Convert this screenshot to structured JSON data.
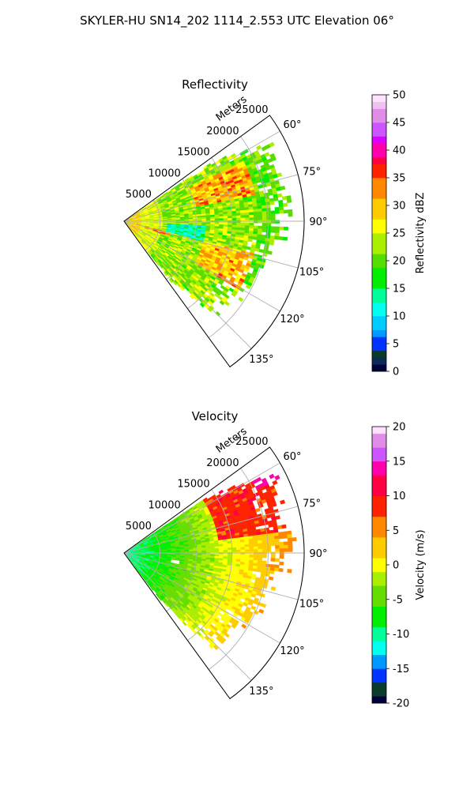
{
  "figure_title": "SKYLER-HU  SN14_202  1114_2.553 UTC Elevation 06°",
  "chart_data": [
    {
      "type": "heatmap",
      "projection": "polar-sector",
      "title": "Reflectivity",
      "radial_label": "Meters",
      "r_ticks": [
        5000,
        10000,
        15000,
        20000,
        25000
      ],
      "r_tick_labels": [
        "5000",
        "10000",
        "15000",
        "20000",
        "25000"
      ],
      "rlim": [
        0,
        25000
      ],
      "theta_ticks": [
        60,
        75,
        90,
        105,
        120,
        135
      ],
      "theta_tick_labels": [
        "60°",
        "75°",
        "90°",
        "105°",
        "120°",
        "135°"
      ],
      "theta_range": [
        54,
        144
      ],
      "grid": true,
      "colorbar": {
        "label": "Reflectivity dBZ",
        "min": 0,
        "max": 50,
        "ticks": [
          0,
          5,
          10,
          15,
          20,
          25,
          30,
          35,
          40,
          45,
          50
        ],
        "tick_labels": [
          "0",
          "5",
          "10",
          "15",
          "20",
          "25",
          "30",
          "35",
          "40",
          "45",
          "50"
        ],
        "colormap": [
          {
            "v": 0,
            "c": "#00003a"
          },
          {
            "v": 2,
            "c": "#0a2a5a"
          },
          {
            "v": 3,
            "c": "#0a3a2a"
          },
          {
            "v": 5,
            "c": "#0033ff"
          },
          {
            "v": 7,
            "c": "#0099ff"
          },
          {
            "v": 9,
            "c": "#00ccff"
          },
          {
            "v": 11,
            "c": "#00ffee"
          },
          {
            "v": 14,
            "c": "#00ff99"
          },
          {
            "v": 17,
            "c": "#00ee00"
          },
          {
            "v": 20,
            "c": "#55dd00"
          },
          {
            "v": 23,
            "c": "#aaee00"
          },
          {
            "v": 26,
            "c": "#ffff00"
          },
          {
            "v": 30,
            "c": "#ffcc00"
          },
          {
            "v": 33,
            "c": "#ff8800"
          },
          {
            "v": 36,
            "c": "#ff2200"
          },
          {
            "v": 38,
            "c": "#ff0044"
          },
          {
            "v": 40,
            "c": "#ff00aa"
          },
          {
            "v": 42,
            "c": "#dd00ff"
          },
          {
            "v": 44,
            "c": "#cc55ff"
          },
          {
            "v": 46,
            "c": "#e08ce8"
          },
          {
            "v": 48,
            "c": "#f0c0f0"
          },
          {
            "v": 50,
            "c": "#ffe0ff"
          }
        ]
      },
      "field_features": [
        {
          "note": "near-radar fill",
          "theta": [
            60,
            138
          ],
          "r": [
            0,
            5000
          ],
          "value": 24
        },
        {
          "note": "broad echo",
          "theta": [
            58,
            140
          ],
          "r": [
            5000,
            24000
          ],
          "value": 23
        },
        {
          "note": "weak core",
          "theta": [
            93,
            103
          ],
          "r": [
            6000,
            11000
          ],
          "value": 15
        },
        {
          "note": "northern band",
          "theta": [
            63,
            78
          ],
          "r": [
            10000,
            18500
          ],
          "value": 34
        },
        {
          "note": "southern band",
          "theta": [
            104,
            120
          ],
          "r": [
            11000,
            20000
          ],
          "value": 33
        },
        {
          "note": "near cell",
          "theta": [
            103,
            108
          ],
          "r": [
            3000,
            6000
          ],
          "value": 35
        }
      ]
    },
    {
      "type": "heatmap",
      "projection": "polar-sector",
      "title": "Velocity",
      "radial_label": "Meters",
      "r_ticks": [
        5000,
        10000,
        15000,
        20000,
        25000
      ],
      "r_tick_labels": [
        "5000",
        "10000",
        "15000",
        "20000",
        "25000"
      ],
      "rlim": [
        0,
        25000
      ],
      "theta_ticks": [
        60,
        75,
        90,
        105,
        120,
        135
      ],
      "theta_tick_labels": [
        "60°",
        "75°",
        "90°",
        "105°",
        "120°",
        "135°"
      ],
      "theta_range": [
        54,
        144
      ],
      "grid": true,
      "colorbar": {
        "label": "Velocity (m/s)",
        "min": -20,
        "max": 20,
        "ticks": [
          -20,
          -15,
          -10,
          -5,
          0,
          5,
          10,
          15,
          20
        ],
        "tick_labels": [
          "-20",
          "-15",
          "-10",
          "-5",
          "0",
          "5",
          "10",
          "15",
          "20"
        ],
        "colormap": [
          {
            "v": -20,
            "c": "#00003a"
          },
          {
            "v": -18,
            "c": "#0a3a2a"
          },
          {
            "v": -16,
            "c": "#0033ff"
          },
          {
            "v": -14,
            "c": "#0099ff"
          },
          {
            "v": -12,
            "c": "#00ffee"
          },
          {
            "v": -10,
            "c": "#00ff99"
          },
          {
            "v": -7,
            "c": "#00ee00"
          },
          {
            "v": -4,
            "c": "#66dd00"
          },
          {
            "v": -2,
            "c": "#aaee00"
          },
          {
            "v": 0,
            "c": "#ffff00"
          },
          {
            "v": 3,
            "c": "#ffcc00"
          },
          {
            "v": 6,
            "c": "#ff8800"
          },
          {
            "v": 9,
            "c": "#ff2200"
          },
          {
            "v": 12,
            "c": "#ff0044"
          },
          {
            "v": 14,
            "c": "#ff00aa"
          },
          {
            "v": 16,
            "c": "#cc55ff"
          },
          {
            "v": 18,
            "c": "#e08ce8"
          },
          {
            "v": 20,
            "c": "#ffe0ff"
          }
        ]
      },
      "field_features": [
        {
          "note": "inbound near radar",
          "theta": [
            56,
            142
          ],
          "r": [
            0,
            6000
          ],
          "value": -9
        },
        {
          "note": "transition ring",
          "theta": [
            56,
            142
          ],
          "r": [
            6000,
            10000
          ],
          "value": -3
        },
        {
          "note": "outbound mid",
          "theta": [
            56,
            142
          ],
          "r": [
            10000,
            20000
          ],
          "value": 2
        },
        {
          "note": "strong outbound north",
          "theta": [
            58,
            80
          ],
          "r": [
            14000,
            24000
          ],
          "value": 10
        },
        {
          "note": "outer edge",
          "theta": [
            90,
            135
          ],
          "r": [
            20000,
            24000
          ],
          "value": 7
        },
        {
          "note": "northern tip",
          "theta": [
            58,
            63
          ],
          "r": [
            20000,
            24000
          ],
          "value": 14
        }
      ]
    }
  ]
}
